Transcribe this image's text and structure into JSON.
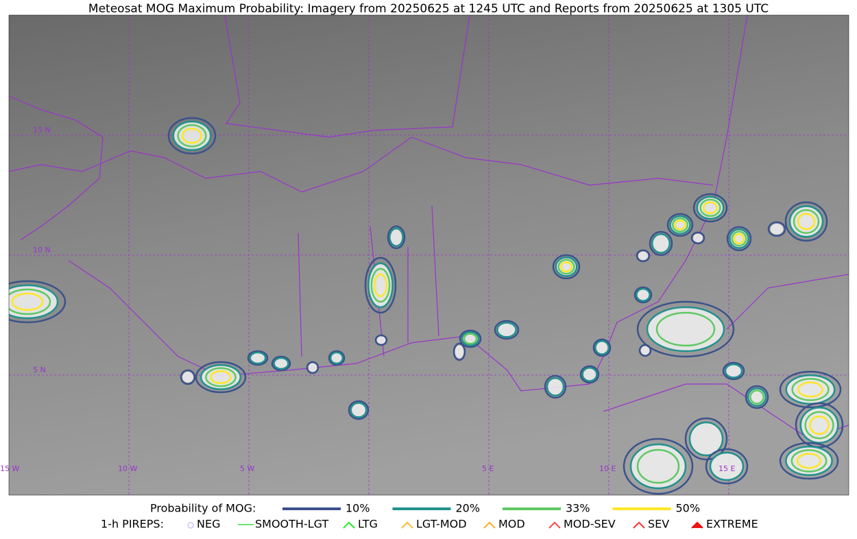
{
  "title": "Meteosat MOG Maximum Probability: Imagery from 20250625 at 1245 UTC and Reports from 20250625 at 1305 UTC",
  "grid_labels": {
    "lat": [
      "15 N",
      "10 N",
      "5 N"
    ],
    "lon": [
      "15 W",
      "10 W",
      "5 W",
      "5 E",
      "10 E",
      "15 E"
    ]
  },
  "legend": {
    "probability": {
      "label": "Probability of MOG:",
      "items": [
        "10%",
        "20%",
        "33%",
        "50%"
      ]
    },
    "pireps": {
      "label": "1-h PIREPS:",
      "items": [
        "NEG",
        "SMOOTH-LGT",
        "LTG",
        "LGT-MOD",
        "MOD",
        "MOD-SEV",
        "SEV",
        "EXTREME"
      ]
    }
  }
}
